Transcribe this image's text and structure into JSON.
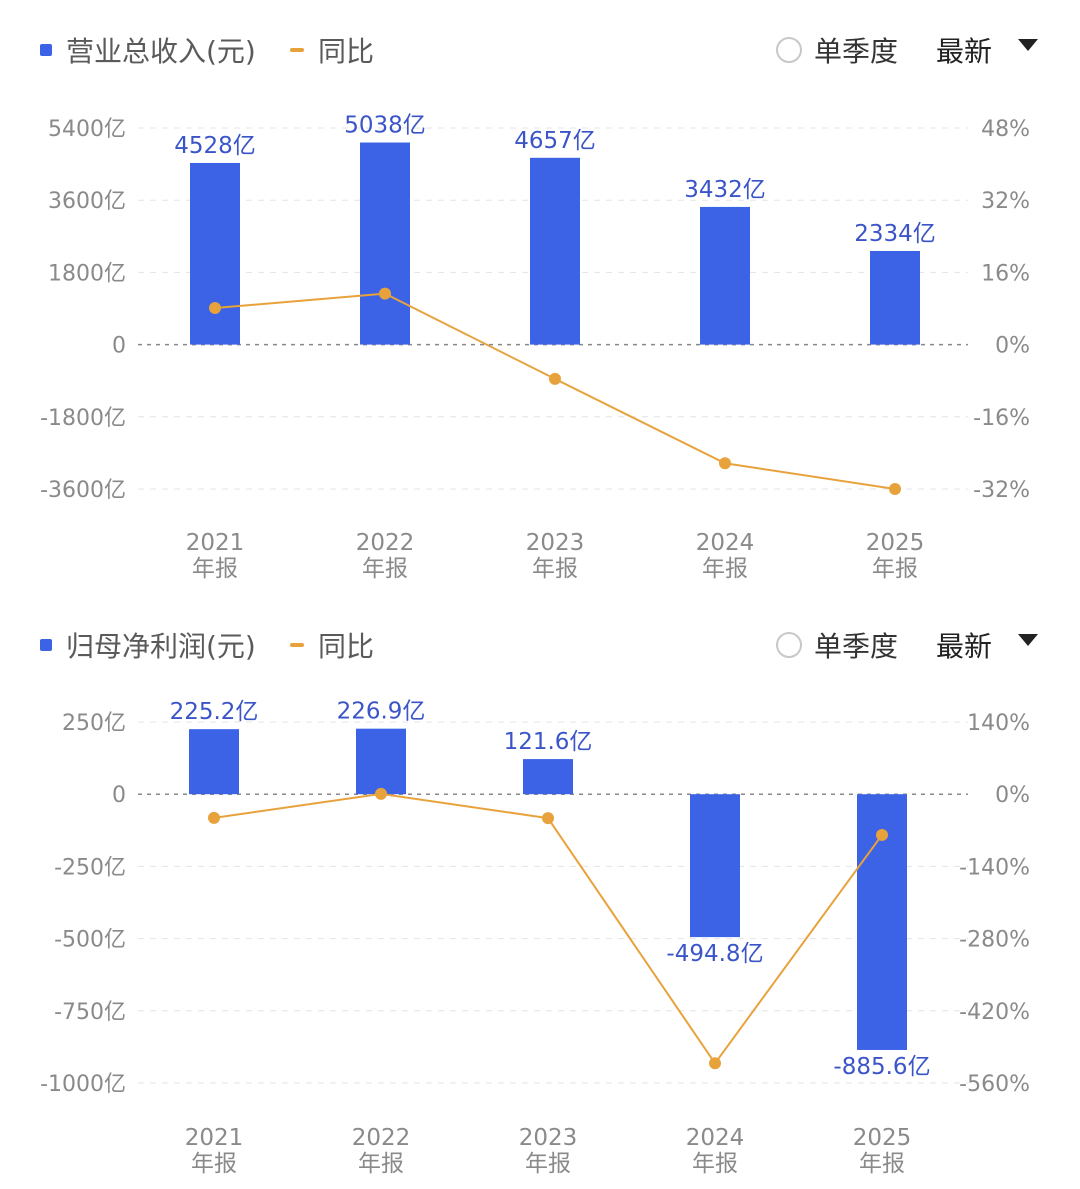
{
  "controls": {
    "single_quarter_label": "单季度",
    "period_select_value": "最新"
  },
  "colors": {
    "bar": "#3c62e6",
    "line": "#e8a23b",
    "label": "#3b55c9"
  },
  "chart_data": [
    {
      "type": "bar",
      "legend": {
        "bar_label": "营业总收入(元)",
        "line_label": "同比"
      },
      "categories": [
        [
          "2021",
          "年报"
        ],
        [
          "2022",
          "年报"
        ],
        [
          "2023",
          "年报"
        ],
        [
          "2024",
          "年报"
        ],
        [
          "2025",
          "年报"
        ]
      ],
      "values": [
        4528,
        5038,
        4657,
        3432,
        2334
      ],
      "value_labels": [
        "4528亿",
        "5038亿",
        "4657亿",
        "3432亿",
        "2334亿"
      ],
      "yoy": [
        8.1,
        11.3,
        -7.6,
        -26.3,
        -32.0
      ],
      "ylim": [
        -3600,
        5400
      ],
      "yticks": [
        5400,
        3600,
        1800,
        0,
        -1800,
        -3600
      ],
      "ytick_labels": [
        "5400亿",
        "3600亿",
        "1800亿",
        "0",
        "-1800亿",
        "-3600亿"
      ],
      "y2lim": [
        -32,
        48
      ],
      "y2ticks": [
        48,
        32,
        16,
        0,
        -16,
        -32
      ],
      "y2tick_labels": [
        "48%",
        "32%",
        "16%",
        "0%",
        "-16%",
        "-32%"
      ]
    },
    {
      "type": "bar",
      "legend": {
        "bar_label": "归母净利润(元)",
        "line_label": "同比"
      },
      "categories": [
        [
          "2021",
          "年报"
        ],
        [
          "2022",
          "年报"
        ],
        [
          "2023",
          "年报"
        ],
        [
          "2024",
          "年报"
        ],
        [
          "2025",
          "年报"
        ]
      ],
      "values": [
        225.2,
        226.9,
        121.6,
        -494.8,
        -885.6
      ],
      "value_labels": [
        "225.2亿",
        "226.9亿",
        "121.6亿",
        "-494.8亿",
        "-885.6亿"
      ],
      "yoy": [
        -46,
        0.7,
        -46.4,
        -521.8,
        -79.0
      ],
      "ylim": [
        -1000,
        250
      ],
      "yticks": [
        250,
        0,
        -250,
        -500,
        -750,
        -1000
      ],
      "ytick_labels": [
        "250亿",
        "0",
        "-250亿",
        "-500亿",
        "-750亿",
        "-1000亿"
      ],
      "y2lim": [
        -560,
        140
      ],
      "y2ticks": [
        140,
        0,
        -140,
        -280,
        -420,
        -560
      ],
      "y2tick_labels": [
        "140%",
        "0%",
        "-140%",
        "-280%",
        "-420%",
        "-560%"
      ]
    }
  ]
}
